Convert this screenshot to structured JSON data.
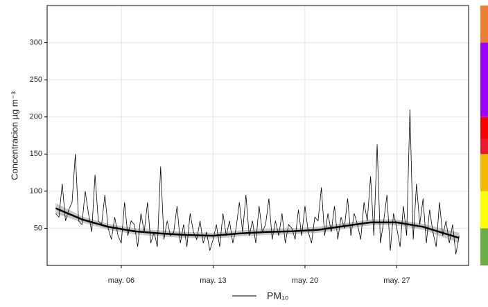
{
  "chart_data": {
    "type": "line",
    "y_label": "Concentracion µg m⁻³",
    "xlim": [
      0.35,
      32.47
    ],
    "ylim": [
      0,
      350
    ],
    "xticks": [
      {
        "value": 6,
        "label": "may. 06"
      },
      {
        "value": 13,
        "label": "may. 13"
      },
      {
        "value": 20,
        "label": "may. 20"
      },
      {
        "value": 27,
        "label": "may. 27"
      }
    ],
    "yticks": [
      50,
      100,
      150,
      200,
      250,
      300
    ],
    "grid": true,
    "x": [
      1,
      1.25,
      1.5,
      1.75,
      2,
      2.25,
      2.5,
      2.75,
      3,
      3.25,
      3.5,
      3.75,
      4,
      4.25,
      4.5,
      4.75,
      5,
      5.25,
      5.5,
      5.75,
      6,
      6.25,
      6.5,
      6.75,
      7,
      7.25,
      7.5,
      7.75,
      8,
      8.25,
      8.5,
      8.75,
      9,
      9.25,
      9.5,
      9.75,
      10,
      10.25,
      10.5,
      10.75,
      11,
      11.25,
      11.5,
      11.75,
      12,
      12.25,
      12.5,
      12.75,
      13,
      13.25,
      13.5,
      13.75,
      14,
      14.25,
      14.5,
      14.75,
      15,
      15.25,
      15.5,
      15.75,
      16,
      16.25,
      16.5,
      16.75,
      17,
      17.25,
      17.5,
      17.75,
      18,
      18.25,
      18.5,
      18.75,
      19,
      19.25,
      19.5,
      19.75,
      20,
      20.25,
      20.5,
      20.75,
      21,
      21.25,
      21.5,
      21.75,
      22,
      22.25,
      22.5,
      22.75,
      23,
      23.25,
      23.5,
      23.75,
      24,
      24.25,
      24.5,
      24.75,
      25,
      25.25,
      25.5,
      25.75,
      26,
      26.25,
      26.5,
      26.75,
      27,
      27.25,
      27.5,
      27.75,
      28,
      28.25,
      28.5,
      28.75,
      29,
      29.25,
      29.5,
      29.75,
      30,
      30.25,
      30.5,
      30.75,
      31,
      31.25,
      31.5,
      31.75
    ],
    "series": [
      {
        "name": "PM₁₀",
        "color": "#000000",
        "values": [
          70,
          65,
          110,
          60,
          75,
          85,
          150,
          60,
          55,
          100,
          70,
          45,
          122,
          60,
          55,
          95,
          50,
          35,
          65,
          40,
          30,
          85,
          40,
          60,
          55,
          25,
          70,
          45,
          85,
          30,
          45,
          25,
          133,
          35,
          60,
          40,
          45,
          80,
          30,
          55,
          25,
          70,
          45,
          35,
          60,
          30,
          45,
          20,
          35,
          55,
          25,
          70,
          40,
          60,
          30,
          50,
          85,
          45,
          95,
          40,
          60,
          30,
          80,
          45,
          55,
          90,
          35,
          60,
          40,
          70,
          30,
          55,
          50,
          35,
          75,
          40,
          80,
          45,
          30,
          65,
          60,
          105,
          40,
          70,
          45,
          80,
          35,
          65,
          50,
          90,
          40,
          70,
          55,
          35,
          85,
          60,
          120,
          40,
          163,
          30,
          60,
          95,
          20,
          70,
          50,
          25,
          80,
          40,
          210,
          35,
          110,
          55,
          90,
          30,
          75,
          45,
          25,
          85,
          40,
          60,
          30,
          55,
          15,
          40
        ]
      }
    ],
    "trend": {
      "color": "#000000",
      "band_color": "#c8c8c8",
      "x": [
        1,
        3,
        5,
        7,
        9,
        11,
        13,
        15,
        17,
        19,
        21,
        23,
        25,
        27,
        29,
        31.75
      ],
      "values": [
        77,
        62,
        52,
        46,
        43,
        41,
        40,
        43,
        45,
        46,
        48,
        53,
        58,
        58,
        52,
        37
      ],
      "lower": [
        70,
        58,
        48,
        42,
        39,
        37,
        36,
        39,
        41,
        42,
        44,
        49,
        54,
        54,
        48,
        30
      ],
      "upper": [
        84,
        66,
        56,
        50,
        47,
        45,
        44,
        47,
        49,
        50,
        52,
        57,
        62,
        62,
        56,
        44
      ]
    },
    "color_scale": {
      "breaks": [
        0,
        50,
        100,
        150,
        170,
        200,
        300,
        350
      ],
      "colors": [
        "#6aaf45",
        "#ffff00",
        "#f5b800",
        "#e8192c",
        "#ff0000",
        "#9b00ff",
        "#ed7d31"
      ]
    }
  }
}
